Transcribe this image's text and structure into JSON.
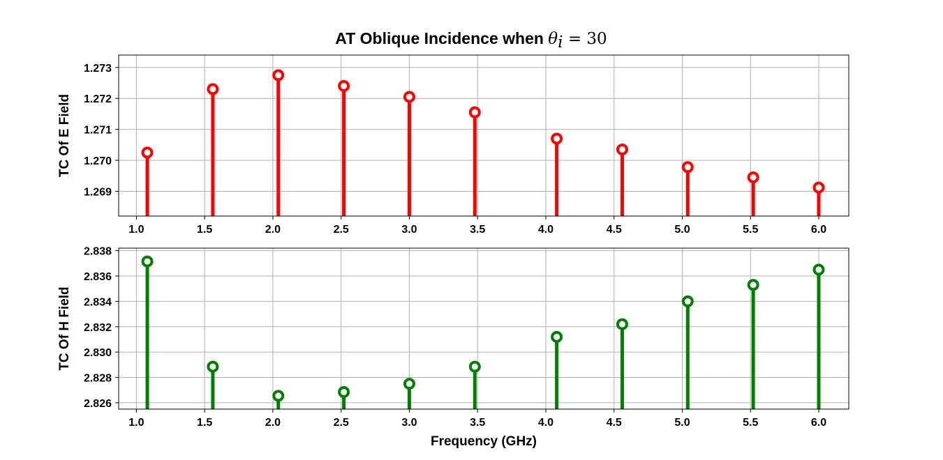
{
  "figure": {
    "title_text": "AT Oblique Incidence when ",
    "title_math": "θ",
    "title_math_sub": "i",
    "title_math_rest": " = 30"
  },
  "chart_data": [
    {
      "type": "stem",
      "ylabel": "TC Of E Field",
      "xlabel": "",
      "color": "#ff0000",
      "x": [
        1.08,
        1.56,
        2.04,
        2.52,
        3.0,
        3.48,
        4.08,
        4.56,
        5.04,
        5.52,
        6.0
      ],
      "y": [
        1.27025,
        1.2723,
        1.27275,
        1.2724,
        1.27205,
        1.27155,
        1.2707,
        1.27035,
        1.26978,
        1.26945,
        1.26912
      ],
      "xlim": [
        0.87,
        6.22
      ],
      "ylim": [
        1.2682,
        1.2734
      ],
      "xticks": [
        "1.0",
        "1.5",
        "2.0",
        "2.5",
        "3.0",
        "3.5",
        "4.0",
        "4.5",
        "5.0",
        "5.5",
        "6.0"
      ],
      "yticks": [
        "1.269",
        "1.270",
        "1.271",
        "1.272",
        "1.273"
      ],
      "grid": true
    },
    {
      "type": "stem",
      "ylabel": "TC Of H Field",
      "xlabel": "Frequency (GHz)",
      "color": "#008000",
      "x": [
        1.08,
        1.56,
        2.04,
        2.52,
        3.0,
        3.48,
        4.08,
        4.56,
        5.04,
        5.52,
        6.0
      ],
      "y": [
        2.83715,
        2.82885,
        2.82655,
        2.82685,
        2.8275,
        2.82885,
        2.8312,
        2.8322,
        2.834,
        2.8353,
        2.8365
      ],
      "xlim": [
        0.87,
        6.22
      ],
      "ylim": [
        2.8255,
        2.8382
      ],
      "xticks": [
        "1.0",
        "1.5",
        "2.0",
        "2.5",
        "3.0",
        "3.5",
        "4.0",
        "4.5",
        "5.0",
        "5.5",
        "6.0"
      ],
      "yticks": [
        "2.826",
        "2.828",
        "2.830",
        "2.832",
        "2.834",
        "2.836",
        "2.838"
      ],
      "grid": true
    }
  ]
}
